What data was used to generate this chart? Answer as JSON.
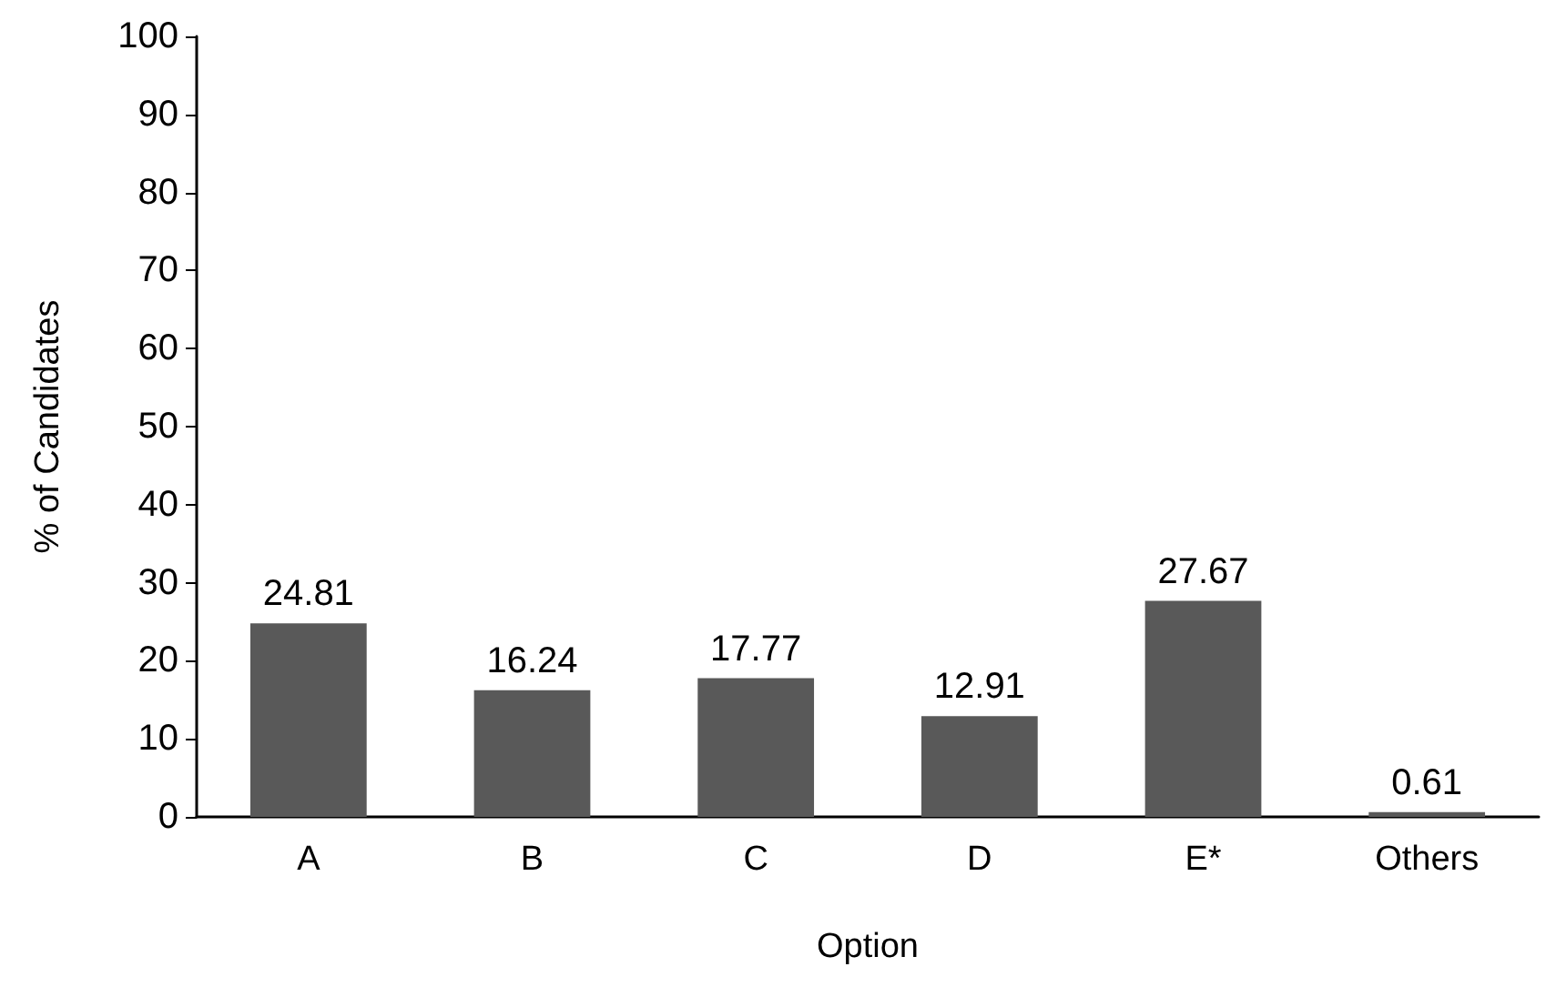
{
  "chart_data": {
    "type": "bar",
    "xlabel": "Option",
    "ylabel": "% of Candidates",
    "categories": [
      "A",
      "B",
      "C",
      "D",
      "E*",
      "Others"
    ],
    "values": [
      24.81,
      16.24,
      17.77,
      12.91,
      27.67,
      0.61
    ],
    "color": "#595959",
    "ylim": [
      0,
      100
    ],
    "yticks": [
      0,
      10,
      20,
      30,
      40,
      50,
      60,
      70,
      80,
      90,
      100
    ],
    "grid": false,
    "data_labels": true
  }
}
